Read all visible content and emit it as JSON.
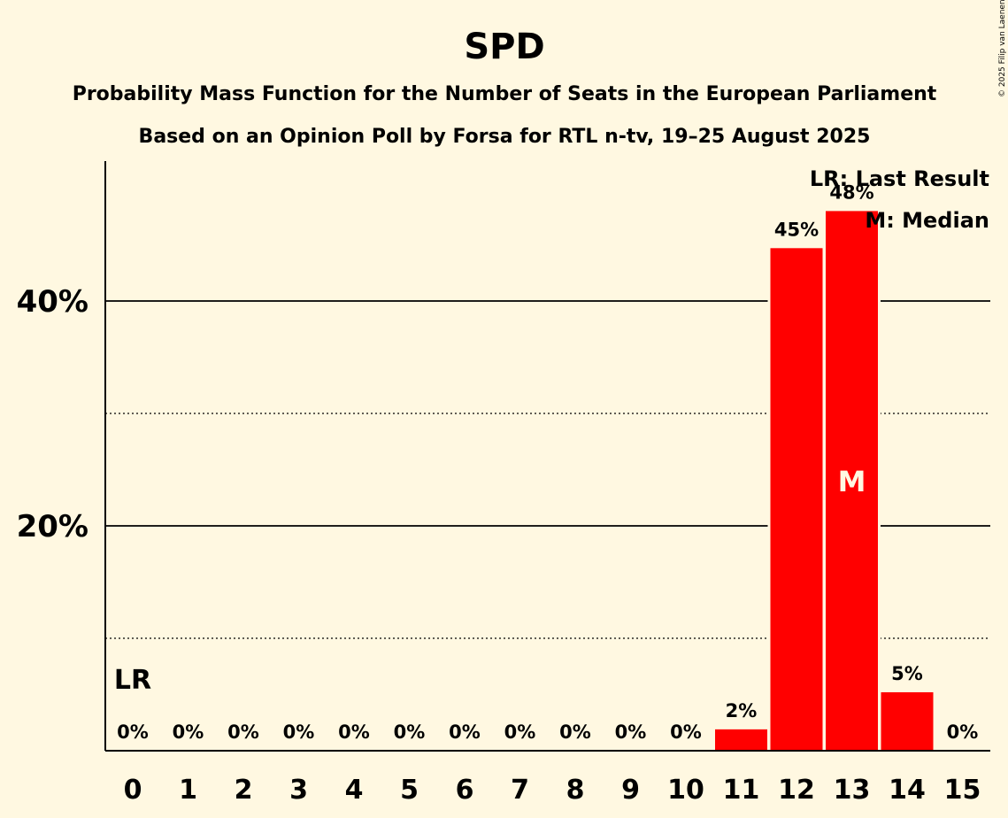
{
  "chart_data": {
    "type": "bar",
    "title": "SPD",
    "subtitle": "Probability Mass Function for the Number of Seats in the European Parliament",
    "subtitle2": "Based on an Opinion Poll by Forsa for RTL n-tv, 19–25 August 2025",
    "copyright": "© 2025 Filip van Laenen",
    "categories": [
      "0",
      "1",
      "2",
      "3",
      "4",
      "5",
      "6",
      "7",
      "8",
      "9",
      "10",
      "11",
      "12",
      "13",
      "14",
      "15"
    ],
    "values": [
      0,
      0,
      0,
      0,
      0,
      0,
      0,
      0,
      0,
      0,
      0,
      1.9,
      44.7,
      48.0,
      5.2,
      0
    ],
    "value_labels": [
      "0%",
      "0%",
      "0%",
      "0%",
      "0%",
      "0%",
      "0%",
      "0%",
      "0%",
      "0%",
      "0%",
      "2%",
      "45%",
      "48%",
      "5%",
      "0%"
    ],
    "ylim": [
      0,
      52.5
    ],
    "y_ticks_major": [
      {
        "value": 20,
        "label": "20%"
      },
      {
        "value": 40,
        "label": "40%"
      }
    ],
    "y_ticks_minor": [
      10,
      30
    ],
    "bar_color": "#FF0000",
    "last_result": {
      "category": "0",
      "label": "LR"
    },
    "median": {
      "category": "13",
      "label": "M"
    },
    "legend": [
      "LR: Last Result",
      "M: Median"
    ],
    "legend_placement": "top-right",
    "xlabel": "",
    "ylabel": ""
  }
}
